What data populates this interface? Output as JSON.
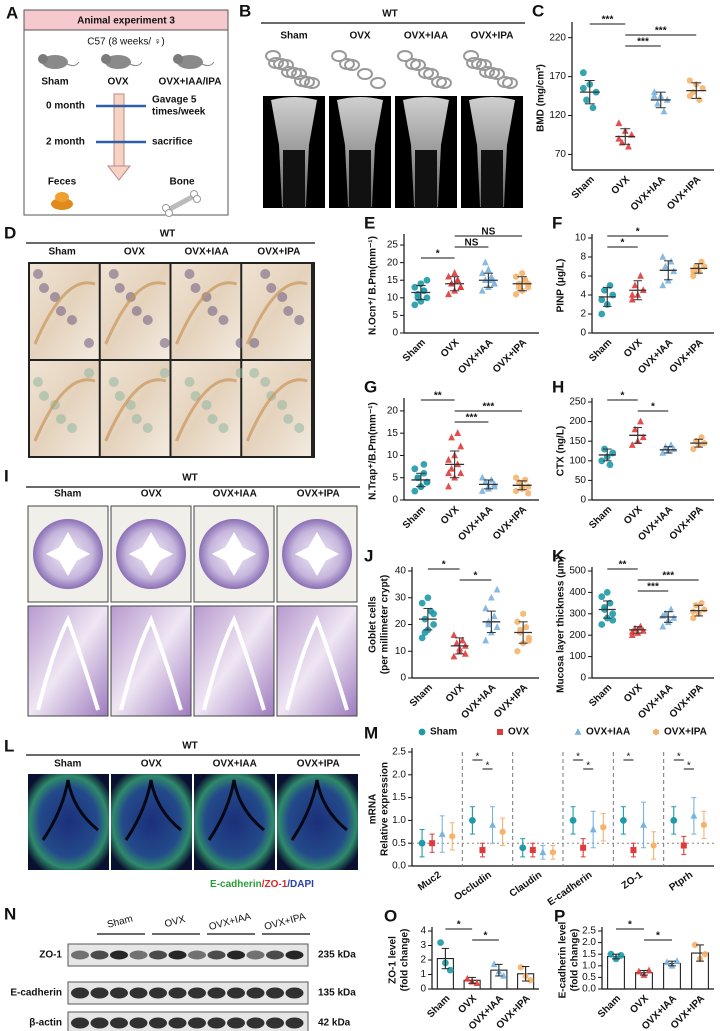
{
  "diagram": {
    "label": "A",
    "title": "Animal experiment 3",
    "subtitle": "C57 (8 weeks/ ♀)",
    "groups": [
      "Sham",
      "OVX",
      "OVX+IAA/IPA"
    ],
    "group_colors": [
      "#1f9aa8",
      "#e03a3a",
      "#2f5fa8"
    ],
    "steps": [
      {
        "time": "0 month",
        "note": [
          "Gavage 5",
          "times/week"
        ]
      },
      {
        "time": "2 month",
        "note": [
          "sacrifice"
        ]
      }
    ],
    "samples": [
      "Feces",
      "Bone"
    ]
  },
  "images": [
    {
      "label": "B",
      "title": "WT",
      "columns": [
        "Sham",
        "OVX",
        "OVX+IAA",
        "OVX+IPA"
      ]
    },
    {
      "label": "D",
      "title": "WT",
      "columns": [
        "Sham",
        "OVX",
        "OVX+IAA",
        "OVX+IPA"
      ]
    },
    {
      "label": "I",
      "title": "WT",
      "columns": [
        "Sham",
        "OVX",
        "OVX+IAA",
        "OVX+IPA"
      ]
    },
    {
      "label": "L",
      "title": "WT",
      "columns": [
        "Sham",
        "OVX",
        "OVX+IAA",
        "OVX+IPA"
      ],
      "caption": [
        {
          "text": "E-cadherin",
          "color": "#2a9d3a"
        },
        {
          "text": "/ZO-1",
          "color": "#d8262b"
        },
        {
          "text": "/DAPI",
          "color": "#2740a8"
        }
      ]
    }
  ],
  "blot": {
    "label": "N",
    "lanes": [
      "Sham",
      "OVX",
      "OVX+IAA",
      "OVX+IPA"
    ],
    "rows": [
      {
        "name": "ZO-1",
        "size": "235 kDa"
      },
      {
        "name": "E-cadherin",
        "size": "135 kDa"
      },
      {
        "name": "β-actin",
        "size": "42 kDa"
      }
    ]
  },
  "chart_data": [
    {
      "type": "dot",
      "label": "C",
      "y_label": [
        "BMD (mg/cm³)"
      ],
      "categories": [
        "Sham",
        "OVX",
        "OVX+IAA",
        "OVX+IPA"
      ],
      "colors": [
        "#1f9aa8",
        "#e03a3a",
        "#7ab3e0",
        "#f5b26b"
      ],
      "markers": [
        "circle",
        "triangle",
        "triangle",
        "hexagon"
      ],
      "points": [
        [
          175,
          160,
          150,
          140,
          130,
          155
        ],
        [
          110,
          100,
          95,
          85,
          80,
          90
        ],
        [
          150,
          145,
          140,
          135,
          125,
          145
        ],
        [
          165,
          160,
          155,
          150,
          140,
          145
        ]
      ],
      "means": [
        150,
        93,
        140,
        152
      ],
      "errors": [
        15,
        10,
        10,
        10
      ],
      "ylim": [
        50,
        235
      ],
      "yticks": [
        70,
        120,
        170,
        220
      ],
      "comparisons": [
        {
          "groups": [
            "Sham",
            "OVX"
          ],
          "label": "***"
        },
        {
          "groups": [
            "OVX",
            "OVX+IPA"
          ],
          "label": "***"
        },
        {
          "groups": [
            "OVX",
            "OVX+IAA"
          ],
          "label": "***"
        }
      ]
    },
    {
      "type": "dot",
      "label": "E",
      "y_label": [
        "N.Ocn⁺/ B.Pm(mm⁻¹)"
      ],
      "categories": [
        "Sham",
        "OVX",
        "OVX+IAA",
        "OVX+IPA"
      ],
      "colors": [
        "#1f9aa8",
        "#e03a3a",
        "#7ab3e0",
        "#f5b26b"
      ],
      "markers": [
        "circle",
        "triangle",
        "triangle",
        "hexagon"
      ],
      "points": [
        [
          8,
          9,
          10,
          11,
          12,
          13,
          14,
          15,
          10,
          12
        ],
        [
          11,
          12,
          13,
          14,
          15,
          16,
          17,
          13,
          14,
          15
        ],
        [
          12,
          13,
          14,
          15,
          16,
          17,
          18,
          14,
          20,
          15
        ],
        [
          11,
          12,
          13,
          14,
          15,
          16,
          17,
          14,
          13,
          15
        ]
      ],
      "means": [
        11.5,
        14,
        15,
        14
      ],
      "errors": [
        2,
        2,
        2,
        2
      ],
      "ylim": [
        0,
        27
      ],
      "yticks": [
        0,
        5,
        10,
        15,
        20,
        25
      ],
      "comparisons": [
        {
          "groups": [
            "OVX",
            "OVX+IPA"
          ],
          "label": "NS"
        },
        {
          "groups": [
            "OVX",
            "OVX+IAA"
          ],
          "label": "NS"
        },
        {
          "groups": [
            "Sham",
            "OVX"
          ],
          "label": "*"
        }
      ]
    },
    {
      "type": "dot",
      "label": "F",
      "y_label": [
        "PINP (μg/L)"
      ],
      "categories": [
        "Sham",
        "OVX",
        "OVX+IAA",
        "OVX+IPA"
      ],
      "colors": [
        "#1f9aa8",
        "#e03a3a",
        "#7ab3e0",
        "#f5b26b"
      ],
      "markers": [
        "circle",
        "triangle",
        "triangle",
        "hexagon"
      ],
      "points": [
        [
          2,
          3,
          4,
          4.5,
          5,
          3.5
        ],
        [
          3.5,
          4,
          4.5,
          5,
          6,
          4
        ],
        [
          5,
          5.5,
          6.5,
          7,
          7.5,
          8
        ],
        [
          6,
          6.5,
          7,
          7,
          7.5,
          6.5
        ]
      ],
      "means": [
        3.8,
        4.5,
        6.6,
        6.8
      ],
      "errors": [
        1,
        1,
        1,
        0.5
      ],
      "ylim": [
        0,
        10
      ],
      "yticks": [
        0,
        2,
        4,
        6,
        8,
        10
      ],
      "comparisons": [
        {
          "groups": [
            "Sham",
            "OVX+IAA"
          ],
          "label": "*"
        },
        {
          "groups": [
            "Sham",
            "OVX"
          ],
          "label": "*"
        }
      ]
    },
    {
      "type": "dot",
      "label": "G",
      "y_label": [
        "N.Trap⁺/B.Pm(mm⁻¹)"
      ],
      "categories": [
        "Sham",
        "OVX",
        "OVX+IAA",
        "OVX+IPA"
      ],
      "colors": [
        "#1f9aa8",
        "#e03a3a",
        "#7ab3e0",
        "#f5b26b"
      ],
      "markers": [
        "circle",
        "triangle",
        "triangle",
        "hexagon"
      ],
      "points": [
        [
          2,
          3,
          4,
          5,
          6,
          7,
          3,
          4,
          5,
          8
        ],
        [
          3,
          5,
          6,
          7,
          8,
          9,
          10,
          12,
          14,
          15,
          6
        ],
        [
          2,
          3,
          3.5,
          4,
          4.5,
          5,
          2.5,
          3
        ],
        [
          2,
          3,
          3,
          4,
          4.5,
          5,
          2.5,
          1.5
        ]
      ],
      "means": [
        4.5,
        8,
        3.5,
        3.3
      ],
      "errors": [
        1.5,
        3,
        1,
        1
      ],
      "ylim": [
        0,
        22
      ],
      "yticks": [
        0,
        5,
        10,
        15,
        20
      ],
      "comparisons": [
        {
          "groups": [
            "Sham",
            "OVX"
          ],
          "label": "**"
        },
        {
          "groups": [
            "OVX",
            "OVX+IPA"
          ],
          "label": "***"
        },
        {
          "groups": [
            "OVX",
            "OVX+IAA"
          ],
          "label": "***"
        }
      ]
    },
    {
      "type": "dot",
      "label": "H",
      "y_label": [
        "CTX (ng/L)"
      ],
      "categories": [
        "Sham",
        "OVX",
        "OVX+IAA",
        "OVX+IPA"
      ],
      "colors": [
        "#1f9aa8",
        "#e03a3a",
        "#7ab3e0",
        "#f5b26b"
      ],
      "markers": [
        "circle",
        "triangle",
        "triangle",
        "hexagon"
      ],
      "points": [
        [
          100,
          110,
          120,
          130,
          90
        ],
        [
          140,
          150,
          160,
          180,
          200
        ],
        [
          120,
          125,
          130,
          135,
          140
        ],
        [
          130,
          140,
          145,
          150,
          160
        ]
      ],
      "means": [
        115,
        165,
        128,
        145
      ],
      "errors": [
        15,
        20,
        8,
        10
      ],
      "ylim": [
        0,
        250
      ],
      "yticks": [
        0,
        50,
        100,
        150,
        200,
        250
      ],
      "comparisons": [
        {
          "groups": [
            "Sham",
            "OVX"
          ],
          "label": "*"
        },
        {
          "groups": [
            "OVX",
            "OVX+IAA"
          ],
          "label": "*"
        }
      ]
    },
    {
      "type": "dot",
      "label": "J",
      "y_label": [
        "Goblet cells",
        "(per millimeter crypt)"
      ],
      "categories": [
        "Sham",
        "OVX",
        "OVX+IAA",
        "OVX+IPA"
      ],
      "colors": [
        "#1f9aa8",
        "#e03a3a",
        "#7ab3e0",
        "#f5b26b"
      ],
      "markers": [
        "circle",
        "triangle",
        "triangle",
        "hexagon"
      ],
      "points": [
        [
          15,
          18,
          20,
          22,
          25,
          28,
          30,
          24,
          17
        ],
        [
          8,
          10,
          12,
          13,
          14,
          16,
          11,
          9
        ],
        [
          14,
          17,
          19,
          21,
          23,
          26,
          30,
          33,
          20
        ],
        [
          10,
          13,
          15,
          17,
          19,
          21,
          24,
          14,
          18
        ]
      ],
      "means": [
        22,
        12,
        21,
        17
      ],
      "errors": [
        4,
        3,
        4,
        4
      ],
      "ylim": [
        0,
        40
      ],
      "yticks": [
        0,
        10,
        20,
        30,
        40
      ],
      "comparisons": [
        {
          "groups": [
            "Sham",
            "OVX"
          ],
          "label": "*"
        },
        {
          "groups": [
            "OVX",
            "OVX+IAA"
          ],
          "label": "*"
        }
      ]
    },
    {
      "type": "dot",
      "label": "K",
      "y_label": [
        "Mucosa layer thickness (μm)"
      ],
      "categories": [
        "Sham",
        "OVX",
        "OVX+IAA",
        "OVX+IPA"
      ],
      "colors": [
        "#1f9aa8",
        "#e03a3a",
        "#7ab3e0",
        "#f5b26b"
      ],
      "markers": [
        "circle",
        "triangle",
        "triangle",
        "hexagon"
      ],
      "points": [
        [
          250,
          280,
          300,
          320,
          350,
          380,
          400,
          270,
          330
        ],
        [
          200,
          210,
          220,
          230,
          240,
          215
        ],
        [
          240,
          260,
          280,
          300,
          320,
          290,
          270
        ],
        [
          280,
          300,
          320,
          340,
          350,
          310
        ]
      ],
      "means": [
        320,
        225,
        285,
        315
      ],
      "errors": [
        40,
        15,
        25,
        25
      ],
      "ylim": [
        0,
        500
      ],
      "yticks": [
        0,
        100,
        200,
        300,
        400,
        500
      ],
      "comparisons": [
        {
          "groups": [
            "Sham",
            "OVX"
          ],
          "label": "**"
        },
        {
          "groups": [
            "OVX",
            "OVX+IPA"
          ],
          "label": "***"
        },
        {
          "groups": [
            "OVX",
            "OVX+IAA"
          ],
          "label": "***"
        }
      ]
    },
    {
      "type": "dotgroup",
      "label": "M",
      "y_label": [
        "mRNA",
        "Relative expression"
      ],
      "categories": [
        "Muc2",
        "Occludin",
        "Claudin",
        "E-cadherin",
        "ZO-1",
        "Ptprh"
      ],
      "series": [
        {
          "name": "Sham",
          "color": "#1f9aa8",
          "marker": "circle",
          "values": [
            0.5,
            1.0,
            0.4,
            1.0,
            1.0,
            1.0
          ],
          "errors": [
            0.3,
            0.3,
            0.2,
            0.3,
            0.3,
            0.3
          ]
        },
        {
          "name": "OVX",
          "color": "#e03a3a",
          "marker": "square",
          "values": [
            0.5,
            0.35,
            0.35,
            0.4,
            0.35,
            0.45
          ],
          "errors": [
            0.2,
            0.15,
            0.15,
            0.2,
            0.15,
            0.2
          ]
        },
        {
          "name": "OVX+IAA",
          "color": "#7ab3e0",
          "marker": "triangle",
          "values": [
            0.7,
            0.9,
            0.3,
            0.8,
            0.9,
            1.1
          ],
          "errors": [
            0.4,
            0.4,
            0.15,
            0.4,
            0.5,
            0.4
          ]
        },
        {
          "name": "OVX+IPA",
          "color": "#f5b26b",
          "marker": "hexagon",
          "values": [
            0.65,
            0.75,
            0.3,
            0.85,
            0.45,
            0.9
          ],
          "errors": [
            0.3,
            0.3,
            0.15,
            0.3,
            0.3,
            0.3
          ]
        }
      ],
      "ylim": [
        0,
        2.5
      ],
      "yticks": [
        {
          "value": 0,
          "label": "0.0"
        },
        0.5,
        {
          "value": 1,
          "label": "1.0"
        },
        1.5,
        {
          "value": 2,
          "label": "2.0"
        },
        2.5
      ],
      "comparisons": [
        {
          "category": "Occludin",
          "groups": [
            "Sham",
            "OVX"
          ],
          "label": "*"
        },
        {
          "category": "Occludin",
          "groups": [
            "OVX",
            "OVX+IAA"
          ],
          "label": "*"
        },
        {
          "category": "E-cadherin",
          "groups": [
            "Sham",
            "OVX"
          ],
          "label": "*"
        },
        {
          "category": "E-cadherin",
          "groups": [
            "OVX",
            "OVX+IAA"
          ],
          "label": "*"
        },
        {
          "category": "ZO-1",
          "groups": [
            "Sham",
            "OVX"
          ],
          "label": "*"
        },
        {
          "category": "Ptprh",
          "groups": [
            "Sham",
            "OVX"
          ],
          "label": "*"
        },
        {
          "category": "Ptprh",
          "groups": [
            "OVX",
            "OVX+IAA"
          ],
          "label": "*"
        }
      ]
    },
    {
      "type": "bar",
      "label": "O",
      "y_label": [
        "ZO-1 level",
        "(fold change)"
      ],
      "categories": [
        "Sham",
        "OVX",
        "OVX+IAA",
        "OVX+IPA"
      ],
      "colors": [
        "#1f9aa8",
        "#e03a3a",
        "#7ab3e0",
        "#f5b26b"
      ],
      "markers": [
        "circle",
        "triangle",
        "triangle",
        "hexagon"
      ],
      "points": [
        [
          3.2,
          1.8,
          1.3
        ],
        [
          0.7,
          0.5,
          0.4
        ],
        [
          1.7,
          1.2,
          0.9
        ],
        [
          1.5,
          0.9,
          0.6
        ]
      ],
      "means": [
        2.1,
        0.6,
        1.3,
        1.05
      ],
      "errors": [
        0.7,
        0.2,
        0.4,
        0.5
      ],
      "ylim": [
        0,
        4
      ],
      "yticks": [
        0,
        1,
        2,
        3,
        4
      ],
      "comparisons": [
        {
          "groups": [
            "Sham",
            "OVX"
          ],
          "label": "*"
        },
        {
          "groups": [
            "OVX",
            "OVX+IAA"
          ],
          "label": "*"
        }
      ]
    },
    {
      "type": "bar",
      "label": "P",
      "y_label": [
        "E-cadherin level",
        "(fold change)"
      ],
      "categories": [
        "Sham",
        "OVX",
        "OVX+IAA",
        "OVX+IPA"
      ],
      "colors": [
        "#1f9aa8",
        "#e03a3a",
        "#7ab3e0",
        "#f5b26b"
      ],
      "markers": [
        "circle",
        "triangle",
        "triangle",
        "hexagon"
      ],
      "points": [
        [
          1.5,
          1.3,
          1.45
        ],
        [
          0.75,
          0.6,
          0.8
        ],
        [
          1.15,
          1.0,
          1.2
        ],
        [
          1.9,
          1.3,
          1.5
        ]
      ],
      "means": [
        1.4,
        0.7,
        1.1,
        1.55
      ],
      "errors": [
        0.1,
        0.1,
        0.1,
        0.35
      ],
      "ylim": [
        0,
        2.5
      ],
      "yticks": [
        {
          "value": 0,
          "label": "0.0"
        },
        0.5,
        {
          "value": 1,
          "label": "1.0"
        },
        1.5,
        {
          "value": 2,
          "label": "2.0"
        },
        2.5
      ],
      "comparisons": [
        {
          "groups": [
            "Sham",
            "OVX"
          ],
          "label": "*"
        },
        {
          "groups": [
            "OVX",
            "OVX+IAA"
          ],
          "label": "*"
        }
      ]
    }
  ]
}
